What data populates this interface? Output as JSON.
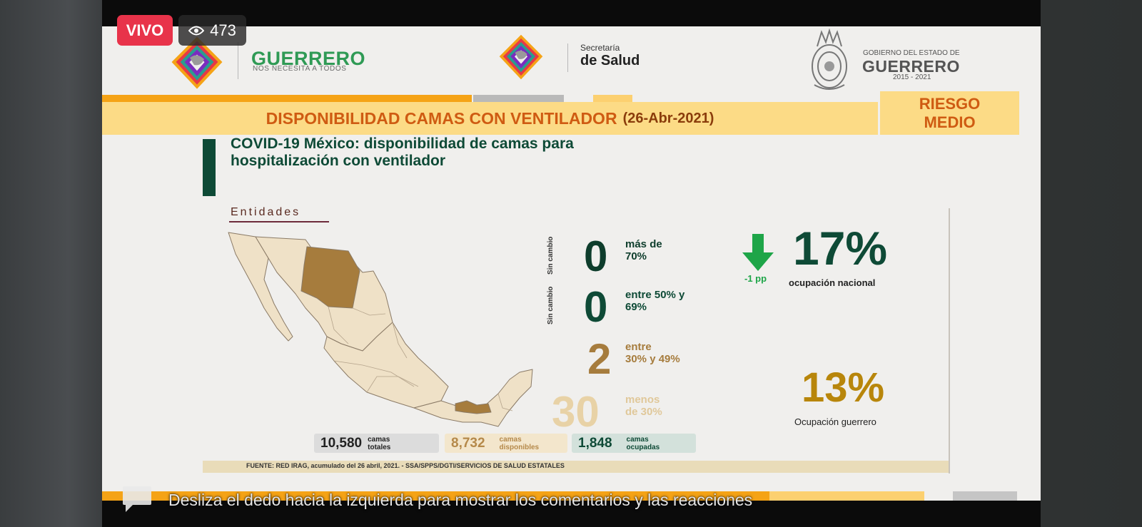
{
  "live": {
    "label": "VIVO",
    "viewers": "473",
    "viewer_icon": "eye-icon"
  },
  "header": {
    "guerrero_logo": {
      "title": "GUERRERO",
      "subtitle": "NOS NECESITA A TODOS"
    },
    "salud_logo": {
      "line1": "Secretaría",
      "line2": "de Salud"
    },
    "gobierno_logo": {
      "line1": "GOBIERNO DEL ESTADO DE",
      "line2": "GUERRERO",
      "line3": "2015 - 2021"
    }
  },
  "title": {
    "main": "DISPONIBILIDAD CAMAS CON VENTILADOR",
    "date": "(26-Abr-2021)"
  },
  "risk": {
    "line1": "RIESGO",
    "line2": "MEDIO"
  },
  "infographic": {
    "heading_line1": "COVID-19 México: disponibilidad de camas para",
    "heading_line2": "hospitalización con ventilador",
    "entities_label": "Entidades",
    "side_label_1": "Sin cambio",
    "side_label_2": "Sin cambio",
    "ranges": [
      {
        "count": "0",
        "text1": "más de",
        "text2": "70%",
        "color": "#0e3d2c"
      },
      {
        "count": "0",
        "text1": "entre 50% y",
        "text2": "69%",
        "color": "#0e4a36"
      },
      {
        "count": "2",
        "text1": "entre",
        "text2": "30% y 49%",
        "color": "#a67c3d"
      },
      {
        "count": "30",
        "text1": "menos",
        "text2": "de 30%",
        "color": "#e8d2a6"
      }
    ],
    "national": {
      "change": "-1 pp",
      "percent": "17%",
      "label": "ocupación nacional",
      "arrow_icon": "arrow-down-icon"
    },
    "guerrero": {
      "percent": "13%",
      "label": "Ocupación guerrero"
    },
    "totals": [
      {
        "value": "10,580",
        "desc1": "camas",
        "desc2": "totales"
      },
      {
        "value": "8,732",
        "desc1": "camas",
        "desc2": "disponibles"
      },
      {
        "value": "1,848",
        "desc1": "camas",
        "desc2": "ocupadas"
      }
    ],
    "source": "FUENTE: RED IRAG, acumulado del 26 abril, 2021.  -  SSA/SPPS/DGTI/SERVICIOS DE SALUD ESTATALES"
  },
  "overlay": {
    "swipe_hint": "Desliza el dedo hacia la izquierda para mostrar los comentarios y las reacciones",
    "comment_icon": "comment-icon"
  },
  "colors": {
    "accent_orange": "#f5a316",
    "band_yellow": "#fcdb86",
    "dark_green": "#0e4a36",
    "live_red": "#e8334a"
  }
}
